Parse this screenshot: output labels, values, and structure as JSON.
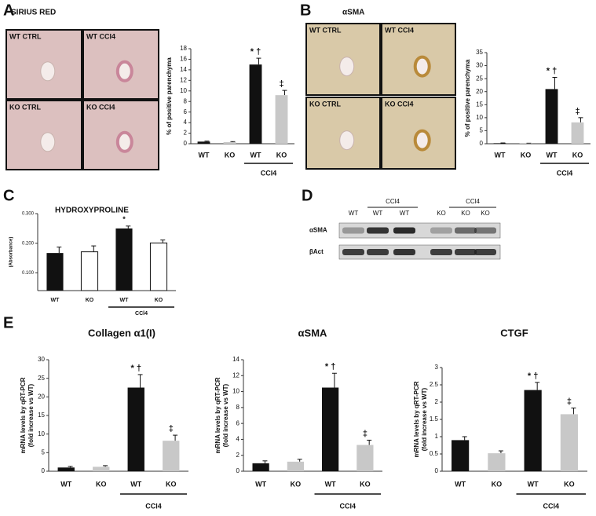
{
  "figure": {
    "panel_labels": [
      "A",
      "B",
      "C",
      "D",
      "E"
    ],
    "micrographs": [
      {
        "labels": [
          "WT CTRL",
          "WT CCl4",
          "KO CTRL",
          "KO CCl4"
        ]
      },
      {
        "labels": [
          "WT CTRL",
          "WT CCl4",
          "KO CTRL",
          "KO CCl4"
        ]
      }
    ],
    "blot": {
      "lanes": [
        "WT",
        "WT",
        "WT",
        "KO",
        "KO",
        "KO"
      ],
      "groups": [
        "CCl4",
        "CCl4"
      ],
      "rows": [
        "αSMA",
        "βAct"
      ]
    }
  },
  "chart_data": [
    {
      "type": "bar",
      "title": "SIRIUS RED",
      "y_label": "% of positive parenchyma",
      "categories": [
        "WT",
        "KO",
        "WT",
        "KO"
      ],
      "group_label": "CCl4",
      "values": [
        0.4,
        0.3,
        15,
        9.2
      ],
      "errors": [
        0.1,
        0.1,
        1.2,
        0.9
      ],
      "value_annotations": [
        null,
        null,
        "* †",
        "‡"
      ],
      "colors": [
        "#111111",
        "#c8c8c8",
        "#111111",
        "#c8c8c8"
      ],
      "ylim": [
        0,
        18
      ],
      "yticks": [
        0,
        2,
        4,
        6,
        8,
        10,
        12,
        14,
        16,
        18
      ]
    },
    {
      "type": "bar",
      "title": "αSMA",
      "y_label": "% of positive parenchyma",
      "categories": [
        "WT",
        "KO",
        "WT",
        "KO"
      ],
      "group_label": "CCl4",
      "values": [
        0.2,
        0.1,
        21,
        8.2
      ],
      "errors": [
        0.1,
        0.1,
        4.5,
        1.8
      ],
      "value_annotations": [
        null,
        null,
        "* †",
        "‡"
      ],
      "colors": [
        "#111111",
        "#c8c8c8",
        "#111111",
        "#c8c8c8"
      ],
      "ylim": [
        0,
        35
      ],
      "yticks": [
        0,
        5,
        10,
        15,
        20,
        25,
        30,
        35
      ]
    },
    {
      "type": "bar",
      "title": "HYDROXYPROLINE",
      "y_label": "(Absorbance)",
      "categories": [
        "WT",
        "KO",
        "WT",
        "KO"
      ],
      "group_label": "CCl4",
      "values": [
        0.167,
        0.171,
        0.25,
        0.201
      ],
      "errors": [
        0.02,
        0.02,
        0.008,
        0.01
      ],
      "value_annotations": [
        null,
        null,
        "*",
        null
      ],
      "colors": [
        "#111111",
        "#ffffff",
        "#111111",
        "#ffffff"
      ],
      "ylim": [
        0.04,
        0.3
      ],
      "yticks": [
        {
          "value": 0.1,
          "label": "0.100"
        },
        {
          "value": 0.2,
          "label": "0.200"
        },
        {
          "value": 0.3,
          "label": "0.300"
        }
      ]
    },
    {
      "type": "bar",
      "title": "Collagen α1(I)",
      "y_label": [
        "mRNA levels by qRT-PCR",
        "(fold increase vs WT)"
      ],
      "categories": [
        "WT",
        "KO",
        "WT",
        "KO"
      ],
      "group_label": "CCl4",
      "values": [
        1,
        1.2,
        22.5,
        8.2
      ],
      "errors": [
        0.3,
        0.3,
        3.5,
        1.5
      ],
      "value_annotations": [
        null,
        null,
        "* †",
        "‡"
      ],
      "colors": [
        "#111111",
        "#c8c8c8",
        "#111111",
        "#c8c8c8"
      ],
      "ylim": [
        0,
        30
      ],
      "yticks": [
        0,
        5,
        10,
        15,
        20,
        25,
        30
      ]
    },
    {
      "type": "bar",
      "title": "αSMA",
      "y_label": [
        "mRNA levels by qRT-PCR",
        "(fold increase vs WT)"
      ],
      "categories": [
        "WT",
        "KO",
        "WT",
        "KO"
      ],
      "group_label": "CCl4",
      "values": [
        1,
        1.2,
        10.5,
        3.3
      ],
      "errors": [
        0.3,
        0.3,
        1.8,
        0.6
      ],
      "value_annotations": [
        null,
        null,
        "* †",
        "‡"
      ],
      "colors": [
        "#111111",
        "#c8c8c8",
        "#111111",
        "#c8c8c8"
      ],
      "ylim": [
        0,
        14
      ],
      "yticks": [
        0,
        2,
        4,
        6,
        8,
        10,
        12,
        14
      ]
    },
    {
      "type": "bar",
      "title": "CTGF",
      "y_label": [
        "mRNA levels by qRT-PCR",
        "(fold increase vs WT)"
      ],
      "categories": [
        "WT",
        "KO",
        "WT",
        "KO"
      ],
      "group_label": "CCl4",
      "values": [
        0.9,
        0.52,
        2.35,
        1.65
      ],
      "errors": [
        0.1,
        0.07,
        0.22,
        0.18
      ],
      "value_annotations": [
        null,
        null,
        "* †",
        "‡"
      ],
      "colors": [
        "#111111",
        "#c8c8c8",
        "#111111",
        "#c8c8c8"
      ],
      "ylim": [
        0,
        3
      ],
      "yticks": [
        0,
        0.5,
        1,
        1.5,
        2,
        2.5,
        3
      ]
    }
  ]
}
